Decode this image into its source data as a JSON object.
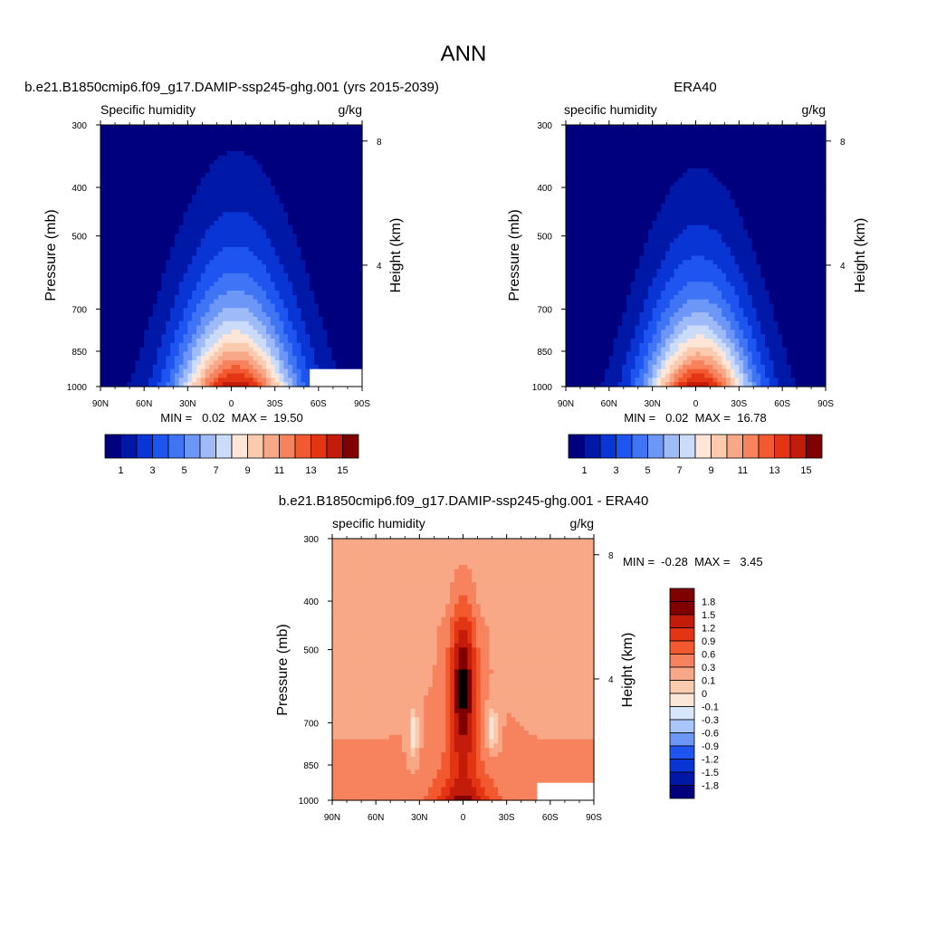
{
  "page_title": "ANN",
  "palettes": {
    "abs": [
      "#00007f",
      "#0018a8",
      "#0935d4",
      "#1e55f0",
      "#3f75f5",
      "#6d97f7",
      "#9ebbf8",
      "#cadcfa",
      "#fde6d8",
      "#fbcbb0",
      "#f9a887",
      "#f7835e",
      "#f2592f",
      "#e33514",
      "#c41c0a",
      "#800000"
    ],
    "diff": [
      "#00007f",
      "#0018a8",
      "#0935d4",
      "#1e55f0",
      "#6d97f7",
      "#a8c6fa",
      "#d8e6fb",
      "#fde6d8",
      "#fbcbb0",
      "#f9a887",
      "#f7835e",
      "#f2592f",
      "#e33514",
      "#c41c0a",
      "#800000"
    ]
  },
  "chart_data": [
    {
      "type": "heatmap",
      "id": "model",
      "title": "b.e21.B1850cmip6.f09_g17.DAMIP-ssp245-ghg.001 (yrs 2015-2039)",
      "left_string": "Specific humidity",
      "right_string": "g/kg",
      "xlabel": "",
      "ylabel": "Pressure (mb)",
      "ylabel_right": "Height (km)",
      "x_ticks": [
        "90N",
        "60N",
        "30N",
        "0",
        "30S",
        "60S",
        "90S"
      ],
      "x_tick_values": [
        -90,
        -60,
        -30,
        0,
        30,
        60,
        90
      ],
      "xlim": [
        -90,
        90
      ],
      "y_ticks": [
        "300",
        "400",
        "500",
        "700",
        "850",
        "1000"
      ],
      "y_tick_values": [
        300,
        400,
        500,
        700,
        850,
        1000
      ],
      "ylim": [
        300,
        1000
      ],
      "height_ticks": [
        "8",
        "4"
      ],
      "height_tick_values": [
        8,
        4
      ],
      "min_max_text": "MIN =   0.02  MAX =  19.50",
      "min": 0.02,
      "max": 19.5,
      "colorbar_labels": [
        "1",
        "3",
        "5",
        "7",
        "9",
        "11",
        "13",
        "15"
      ],
      "colorbar_levels": [
        1,
        2,
        3,
        4,
        5,
        6,
        7,
        8,
        9,
        10,
        11,
        12,
        13,
        14,
        15
      ],
      "peak_level": 15,
      "peak_pressure": 560,
      "scale_heights": 2.8,
      "trop_spread_deg": 28,
      "trop_peak_shift": 3,
      "q_offset": 0.25,
      "missing_region": {
        "lat_from": 55,
        "lat_to": 90,
        "p_from": 920,
        "p_to": 1000
      }
    },
    {
      "type": "heatmap",
      "id": "obs",
      "title": "ERA40",
      "left_string": "specific humidity",
      "right_string": "g/kg",
      "xlabel": "",
      "ylabel": "Pressure (mb)",
      "ylabel_right": "Height (km)",
      "x_ticks": [
        "90N",
        "60N",
        "30N",
        "0",
        "30S",
        "60S",
        "90S"
      ],
      "x_tick_values": [
        -90,
        -60,
        -30,
        0,
        30,
        60,
        90
      ],
      "xlim": [
        -90,
        90
      ],
      "y_ticks": [
        "300",
        "400",
        "500",
        "700",
        "850",
        "1000"
      ],
      "y_tick_values": [
        300,
        400,
        500,
        700,
        850,
        1000
      ],
      "ylim": [
        300,
        1000
      ],
      "height_ticks": [
        "8",
        "4"
      ],
      "height_tick_values": [
        8,
        4
      ],
      "min_max_text": "MIN =   0.02  MAX =  16.78",
      "min": 0.02,
      "max": 16.78,
      "colorbar_labels": [
        "1",
        "3",
        "5",
        "7",
        "9",
        "11",
        "13",
        "15"
      ],
      "colorbar_levels": [
        1,
        2,
        3,
        4,
        5,
        6,
        7,
        8,
        9,
        10,
        11,
        12,
        13,
        14,
        15
      ],
      "peak_level": 15,
      "peak_pressure": 560,
      "scale_heights": 2.6,
      "trop_spread_deg": 26,
      "trop_peak_shift": 2,
      "q_offset": 0.2
    },
    {
      "type": "heatmap",
      "id": "diff",
      "title": "b.e21.B1850cmip6.f09_g17.DAMIP-ssp245-ghg.001 - ERA40",
      "left_string": "specific humidity",
      "right_string": "g/kg",
      "xlabel": "",
      "ylabel": "Pressure (mb)",
      "ylabel_right": "Height (km)",
      "x_ticks": [
        "90N",
        "60N",
        "30N",
        "0",
        "30S",
        "60S",
        "90S"
      ],
      "x_tick_values": [
        -90,
        -60,
        -30,
        0,
        30,
        60,
        90
      ],
      "xlim": [
        -90,
        90
      ],
      "y_ticks": [
        "300",
        "400",
        "500",
        "700",
        "850",
        "1000"
      ],
      "y_tick_values": [
        300,
        400,
        500,
        700,
        850,
        1000
      ],
      "ylim": [
        300,
        1000
      ],
      "height_ticks": [
        "8",
        "4"
      ],
      "height_tick_values": [
        8,
        4
      ],
      "min_max_text": "MIN =  -0.28  MAX =   3.45",
      "min": -0.28,
      "max": 3.45,
      "colorbar_labels": [
        "1.8",
        "1.5",
        "1.2",
        "0.9",
        "0.6",
        "0.3",
        "0.1",
        "0",
        "-0.1",
        "-0.3",
        "-0.6",
        "-0.9",
        "-1.2",
        "-1.5",
        "-1.8"
      ],
      "colorbar_levels": [
        -1.8,
        -1.5,
        -1.2,
        -0.9,
        -0.6,
        -0.3,
        -0.1,
        0,
        0.1,
        0.3,
        0.6,
        0.9,
        1.2,
        1.5,
        1.8
      ],
      "missing_region": {
        "lat_from": 50,
        "lat_to": 90,
        "p_from": 920,
        "p_to": 1000
      }
    }
  ]
}
